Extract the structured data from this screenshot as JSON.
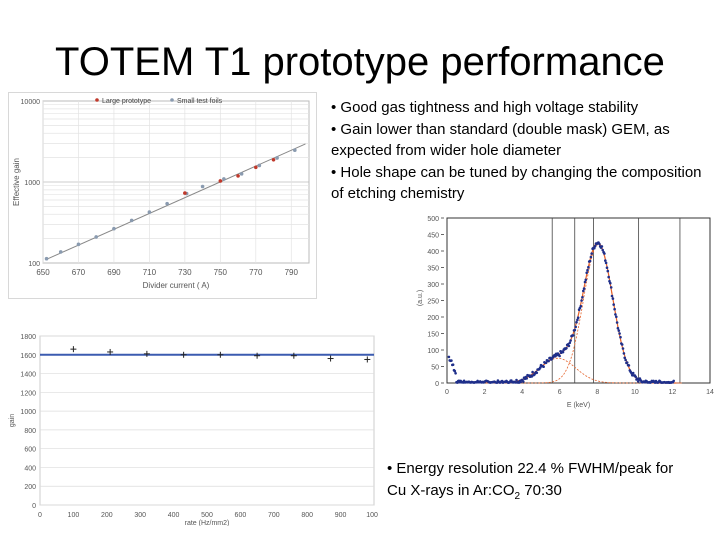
{
  "title": "TOTEM T1 prototype performance",
  "bullets": [
    "• Good gas tightness and high voltage stability",
    "• Gain lower than standard (double mask) GEM, as expected from wider hole diameter",
    "• Hole shape can be tuned by changing the composition of etching chemistry"
  ],
  "bottom_note": {
    "line1": "• Energy resolution 22.4 % FWHM/peak for",
    "line2_prefix": "Cu X-rays in Ar:CO",
    "line2_sub": "2",
    "line2_suffix": " 70:30"
  },
  "chart_data": [
    {
      "type": "scatter",
      "title": "",
      "xlabel": "Divider current (  A)",
      "ylabel": "Effective gain",
      "log_y": true,
      "xlim": [
        650,
        800
      ],
      "ylim": [
        100,
        10000
      ],
      "xticks": [
        650,
        670,
        690,
        710,
        730,
        750,
        770,
        790
      ],
      "yticks": [
        100,
        1000,
        10000
      ],
      "ytick_labels": [
        "100",
        "1000",
        "10000"
      ],
      "grid": true,
      "legend": "top",
      "colors": {
        "series_a": "#c0392b",
        "series_b": "#8a9bb0",
        "fit": "#888888"
      },
      "series": [
        {
          "name": "Large prototype",
          "marker": "dot",
          "points": [
            [
              730,
              730
            ],
            [
              750,
              1030
            ],
            [
              760,
              1190
            ],
            [
              770,
              1520
            ],
            [
              780,
              1880
            ]
          ]
        },
        {
          "name": "Small test foils",
          "marker": "dot",
          "points": [
            [
              652,
              113
            ],
            [
              660,
              137
            ],
            [
              670,
              170
            ],
            [
              680,
              210
            ],
            [
              690,
              265
            ],
            [
              700,
              335
            ],
            [
              710,
              425
            ],
            [
              720,
              540
            ],
            [
              731,
              720
            ],
            [
              740,
              880
            ],
            [
              752,
              1090
            ],
            [
              762,
              1260
            ],
            [
              772,
              1600
            ],
            [
              782,
              1980
            ],
            [
              792,
              2470
            ]
          ]
        }
      ],
      "fit": {
        "x": [
          652,
          798
        ],
        "y": [
          111,
          2950
        ]
      }
    },
    {
      "type": "scatter",
      "title": "",
      "xlabel": "E (keV)",
      "ylabel": "(a.u.)",
      "xlim": [
        0,
        14
      ],
      "ylim": [
        0,
        500
      ],
      "xticks": [
        0,
        2,
        4,
        6,
        8,
        10,
        12,
        14
      ],
      "yticks": [
        0,
        50,
        100,
        150,
        200,
        250,
        300,
        350,
        400,
        450,
        500
      ],
      "vlines": [
        5.6,
        6.8,
        7.8,
        10.2,
        12.4
      ],
      "colors": {
        "data": "#1f2f8a",
        "fit": "#e5622a"
      },
      "fits": [
        {
          "name": "escape",
          "mu": 5.9,
          "sigma": 0.95,
          "amp": 75
        },
        {
          "name": "peak",
          "mu": 8.05,
          "sigma": 0.78,
          "amp": 420
        }
      ]
    },
    {
      "type": "scatter",
      "title": "",
      "xlabel": "rate (Hz/mm2)",
      "ylabel": "gain",
      "xlim": [
        0,
        1000
      ],
      "ylim": [
        0,
        1800
      ],
      "xticks": [
        0,
        100,
        200,
        300,
        400,
        500,
        600,
        700,
        800,
        900,
        1000
      ],
      "yticks": [
        0,
        200,
        400,
        600,
        800,
        1000,
        1200,
        1400,
        1600,
        1800
      ],
      "grid": true,
      "colors": {
        "line": "#3b5bb0",
        "marker": "#222222"
      },
      "line_y": 1600,
      "points": [
        [
          100,
          1660
        ],
        [
          210,
          1630
        ],
        [
          320,
          1610
        ],
        [
          430,
          1600
        ],
        [
          540,
          1600
        ],
        [
          650,
          1590
        ],
        [
          760,
          1590
        ],
        [
          870,
          1560
        ],
        [
          980,
          1550
        ]
      ]
    }
  ]
}
